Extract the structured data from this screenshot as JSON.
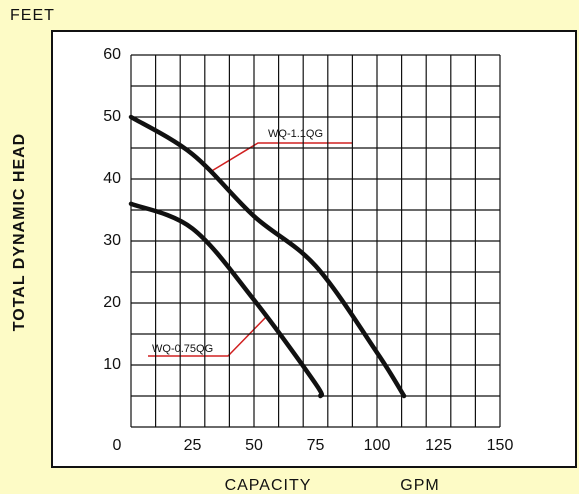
{
  "chart_data": {
    "type": "line",
    "y_unit": "FEET",
    "ylabel": "TOTAL DYNAMIC HEAD",
    "xlabel": "CAPACITY",
    "x_unit": "GPM",
    "xlim": [
      0,
      150
    ],
    "xticks": [
      0,
      25,
      50,
      75,
      100,
      125,
      150
    ],
    "ylim": [
      0,
      60
    ],
    "yticks": [
      10,
      20,
      30,
      40,
      50,
      60
    ],
    "grid_x": [
      0,
      10,
      20,
      30,
      40,
      50,
      60,
      70,
      80,
      90,
      100,
      110,
      120,
      130,
      140,
      150
    ],
    "grid_y": [
      0,
      5,
      10,
      15,
      20,
      25,
      30,
      35,
      40,
      45,
      50,
      55,
      60
    ],
    "grid": true,
    "series": [
      {
        "name": "WQ-1.1QG",
        "color": "#111111",
        "label_color": "#2a8a4a",
        "x": [
          0,
          25,
          50,
          75,
          100,
          111
        ],
        "values": [
          50,
          44,
          34,
          26,
          12,
          5
        ]
      },
      {
        "name": "WQ-0.75QG",
        "color": "#111111",
        "label_color": "#2a8a4a",
        "x": [
          0,
          25,
          50,
          75,
          77
        ],
        "values": [
          36,
          32,
          20.5,
          7,
          5
        ]
      }
    ]
  }
}
